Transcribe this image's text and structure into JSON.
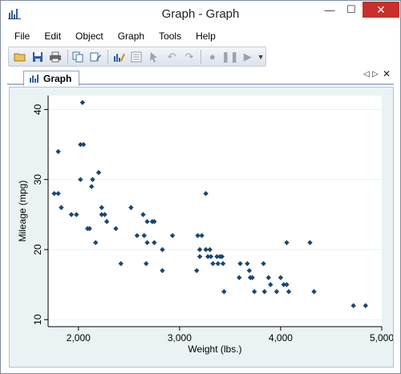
{
  "window": {
    "title": "Graph - Graph"
  },
  "menu": {
    "items": [
      "File",
      "Edit",
      "Object",
      "Graph",
      "Tools",
      "Help"
    ]
  },
  "toolbar": {
    "buttons": [
      "open-icon",
      "save-icon",
      "print-icon",
      "copy-icon",
      "rename-icon",
      "graph-editor-icon",
      "object-browser-icon",
      "pointer-icon",
      "undo-icon",
      "redo-icon",
      "record-icon",
      "pause-icon",
      "play-icon"
    ]
  },
  "tabs": {
    "active": "Graph"
  },
  "colors": {
    "marker": "#1a476f",
    "plot_bg": "#ffffff",
    "outer_bg": "#eaf2f3",
    "grid": "#eaf2f3",
    "close_button": "#c7302b"
  },
  "chart_data": {
    "type": "scatter",
    "xlabel": "Weight (lbs.)",
    "ylabel": "Mileage (mpg)",
    "xlim": [
      1700,
      5000
    ],
    "ylim": [
      9,
      42
    ],
    "xticks": [
      2000,
      3000,
      4000,
      5000
    ],
    "xtick_labels": [
      "2,000",
      "3,000",
      "4,000",
      "5,000"
    ],
    "yticks": [
      10,
      20,
      30,
      40
    ],
    "ytick_labels": [
      "10",
      "20",
      "30",
      "40"
    ],
    "grid": true,
    "points": [
      [
        2040,
        41
      ],
      [
        1800,
        34
      ],
      [
        2020,
        35
      ],
      [
        2050,
        35
      ],
      [
        1760,
        28
      ],
      [
        1800,
        28
      ],
      [
        1830,
        26
      ],
      [
        1930,
        25
      ],
      [
        1980,
        25
      ],
      [
        2110,
        23
      ],
      [
        2020,
        30
      ],
      [
        2130,
        29
      ],
      [
        2140,
        30
      ],
      [
        2200,
        31
      ],
      [
        2170,
        21
      ],
      [
        2090,
        23
      ],
      [
        2230,
        25
      ],
      [
        2230,
        26
      ],
      [
        2260,
        25
      ],
      [
        2280,
        24
      ],
      [
        2370,
        23
      ],
      [
        2420,
        18
      ],
      [
        2520,
        26
      ],
      [
        2580,
        22
      ],
      [
        2640,
        25
      ],
      [
        2650,
        22
      ],
      [
        2680,
        24
      ],
      [
        2670,
        18
      ],
      [
        2680,
        21
      ],
      [
        2730,
        24
      ],
      [
        2750,
        24
      ],
      [
        2750,
        21
      ],
      [
        2830,
        17
      ],
      [
        2830,
        20
      ],
      [
        2930,
        22
      ],
      [
        3170,
        17
      ],
      [
        3180,
        22
      ],
      [
        3220,
        22
      ],
      [
        3200,
        19
      ],
      [
        3200,
        20
      ],
      [
        3260,
        28
      ],
      [
        3260,
        20
      ],
      [
        3280,
        19
      ],
      [
        3300,
        20
      ],
      [
        3310,
        19
      ],
      [
        3330,
        18
      ],
      [
        3370,
        19
      ],
      [
        3380,
        18
      ],
      [
        3400,
        19
      ],
      [
        3420,
        19
      ],
      [
        3430,
        18
      ],
      [
        3440,
        14
      ],
      [
        3600,
        18
      ],
      [
        3590,
        16
      ],
      [
        3670,
        18
      ],
      [
        3700,
        16
      ],
      [
        3690,
        17
      ],
      [
        3720,
        16
      ],
      [
        3740,
        14
      ],
      [
        3830,
        18
      ],
      [
        3840,
        14
      ],
      [
        3880,
        16
      ],
      [
        3900,
        15
      ],
      [
        3960,
        14
      ],
      [
        4000,
        16
      ],
      [
        4030,
        15
      ],
      [
        4060,
        21
      ],
      [
        4060,
        15
      ],
      [
        4080,
        14
      ],
      [
        4290,
        21
      ],
      [
        4330,
        14
      ],
      [
        4720,
        12
      ],
      [
        4840,
        12
      ]
    ]
  }
}
